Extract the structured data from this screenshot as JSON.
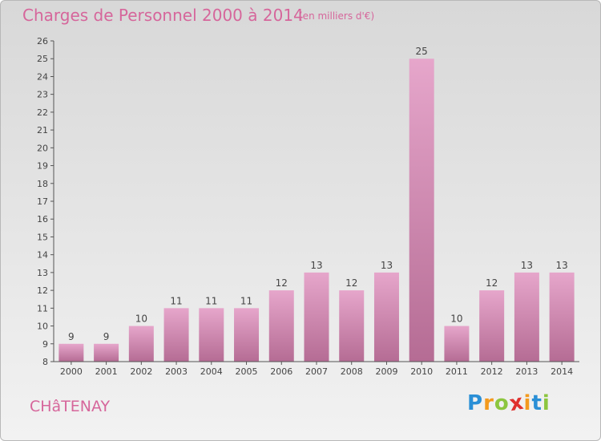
{
  "title": "Charges de Personnel 2000 à 2014",
  "subtitle": "(en milliers d'€)",
  "town": "CHâTENAY",
  "logo": {
    "text": "Proxiti",
    "letters": [
      "P",
      "r",
      "o",
      "x",
      "i",
      "t",
      "i"
    ],
    "colors": [
      "#2a8fd6",
      "#f39a1e",
      "#8cc63f",
      "#e0312e",
      "#f39a1e",
      "#2a8fd6",
      "#8cc63f"
    ]
  },
  "colors": {
    "accent": "#d6669b",
    "bar_light": "#e6a6cb",
    "bar_dark": "#b86e96",
    "axis": "#555555"
  },
  "chart_data": {
    "type": "bar",
    "categories": [
      "2000",
      "2001",
      "2002",
      "2003",
      "2004",
      "2005",
      "2006",
      "2007",
      "2008",
      "2009",
      "2010",
      "2011",
      "2012",
      "2013",
      "2014"
    ],
    "values": [
      9,
      9,
      10,
      11,
      11,
      11,
      12,
      13,
      12,
      13,
      25,
      10,
      12,
      13,
      13
    ],
    "data_labels": [
      "9",
      "9",
      "10",
      "11",
      "11",
      "11",
      "12",
      "13",
      "12",
      "13",
      "25",
      "10",
      "12",
      "13",
      "13"
    ],
    "ylim": [
      8,
      26
    ],
    "yticks": [
      8,
      9,
      10,
      11,
      12,
      13,
      14,
      15,
      16,
      17,
      18,
      19,
      20,
      21,
      22,
      23,
      24,
      25,
      26
    ],
    "grid": false,
    "legend": "none"
  }
}
